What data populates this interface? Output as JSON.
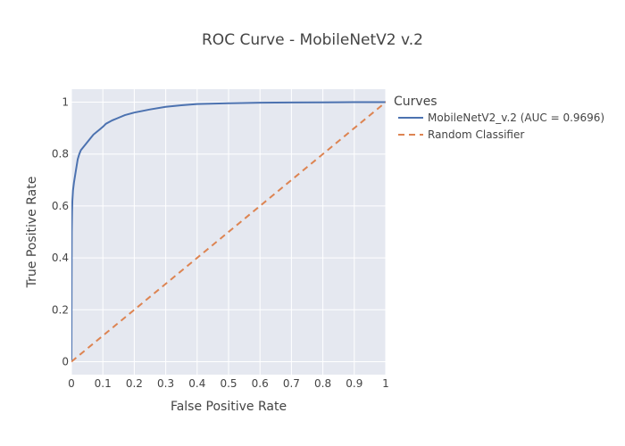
{
  "chart_data": {
    "type": "line",
    "title": "ROC Curve - MobileNetV2 v.2",
    "xlabel": "False Positive Rate",
    "ylabel": "True Positive Rate",
    "xlim": [
      0,
      1
    ],
    "ylim": [
      -0.05,
      1.05
    ],
    "x_ticks": [
      0,
      0.1,
      0.2,
      0.3,
      0.4,
      0.5,
      0.6,
      0.7,
      0.8,
      0.9,
      1
    ],
    "x_tick_labels": [
      "0",
      "0.1",
      "0.2",
      "0.3",
      "0.4",
      "0.5",
      "0.6",
      "0.7",
      "0.8",
      "0.9",
      "1"
    ],
    "y_ticks": [
      0,
      0.2,
      0.4,
      0.6,
      0.8,
      1
    ],
    "y_tick_labels": [
      "0",
      "0.2",
      "0.4",
      "0.6",
      "0.8",
      "1"
    ],
    "grid": true,
    "legend": {
      "title": "Curves",
      "position": "top-right-outside"
    },
    "series": [
      {
        "name": "MobileNetV2_v.2 (AUC = 0.9696)",
        "color": "#4c72b0",
        "dash": "solid",
        "x": [
          0,
          0.0005,
          0.001,
          0.002,
          0.003,
          0.005,
          0.008,
          0.012,
          0.016,
          0.02,
          0.025,
          0.03,
          0.04,
          0.05,
          0.06,
          0.07,
          0.08,
          0.09,
          0.1,
          0.11,
          0.13,
          0.15,
          0.17,
          0.2,
          0.25,
          0.3,
          0.35,
          0.4,
          0.5,
          0.6,
          0.7,
          0.8,
          0.9,
          1.0
        ],
        "y": [
          0,
          0.3,
          0.5,
          0.58,
          0.62,
          0.66,
          0.69,
          0.72,
          0.75,
          0.78,
          0.8,
          0.815,
          0.83,
          0.845,
          0.86,
          0.875,
          0.885,
          0.895,
          0.905,
          0.917,
          0.93,
          0.94,
          0.95,
          0.96,
          0.972,
          0.982,
          0.988,
          0.993,
          0.996,
          0.998,
          0.999,
          0.9995,
          1.0,
          1.0
        ]
      },
      {
        "name": "Random Classifier",
        "color": "#dd8452",
        "dash": "dashed",
        "x": [
          0,
          1
        ],
        "y": [
          0,
          1
        ]
      }
    ]
  }
}
